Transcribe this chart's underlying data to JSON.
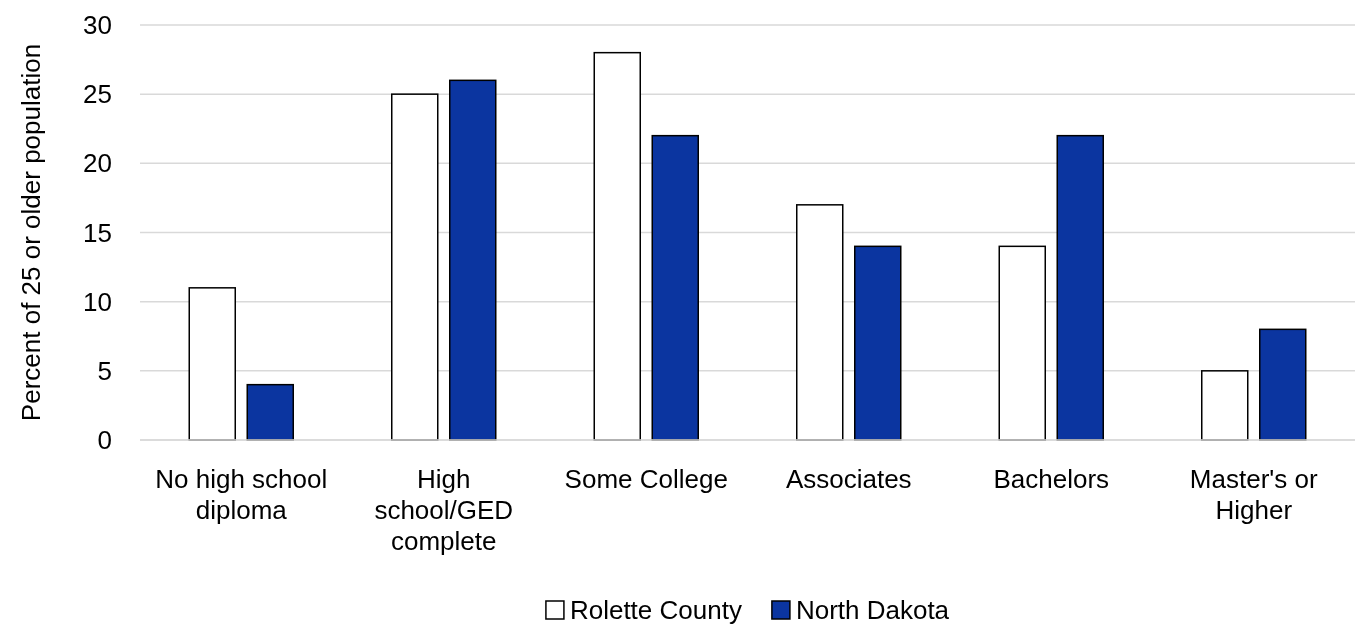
{
  "chart_data": {
    "type": "bar",
    "ylabel": "Percent of 25 or older population",
    "categories": [
      "No high school diploma",
      "High school/GED complete",
      "Some College",
      "Associates",
      "Bachelors",
      "Master's or Higher"
    ],
    "series": [
      {
        "name": "Rolette County",
        "color": "#ffffff",
        "values": [
          11,
          25,
          28,
          17,
          14,
          5
        ]
      },
      {
        "name": "North Dakota",
        "color": "#0b35a0",
        "values": [
          4,
          26,
          22,
          14,
          22,
          8
        ]
      }
    ],
    "ylim": [
      0,
      30
    ],
    "yticks": [
      0,
      5,
      10,
      15,
      20,
      25,
      30
    ],
    "grid": "y",
    "legend": "bottom"
  }
}
